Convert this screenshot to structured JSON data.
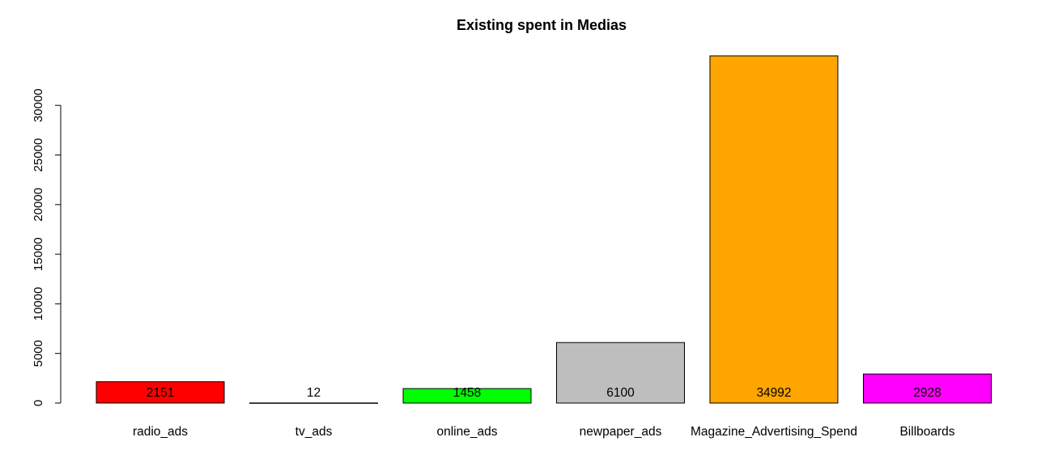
{
  "chart_data": {
    "type": "bar",
    "title": "Existing spent in Medias",
    "xlabel": "",
    "ylabel": "",
    "categories": [
      "radio_ads",
      "tv_ads",
      "online_ads",
      "newpaper_ads",
      "Magazine_Advertising_Spend",
      "Billboards"
    ],
    "values": [
      2151,
      12,
      1458,
      6100,
      34992,
      2928
    ],
    "value_labels": [
      "2151",
      "12",
      "1458",
      "6100",
      "34992",
      "2928"
    ],
    "colors": [
      "#ff0000",
      "#ffffff",
      "#00ff00",
      "#bebebe",
      "#ffa500",
      "#ff00ff"
    ],
    "y_ticks": [
      0,
      5000,
      10000,
      15000,
      20000,
      25000,
      30000
    ],
    "y_tick_labels": [
      "0",
      "5000",
      "10000",
      "15000",
      "20000",
      "25000",
      "30000"
    ],
    "ylim": [
      0,
      34992
    ],
    "grid": false,
    "legend": "none"
  }
}
